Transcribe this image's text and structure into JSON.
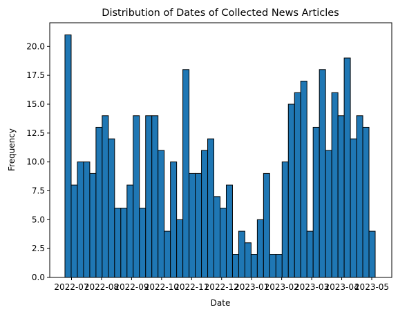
{
  "chart_data": {
    "type": "bar",
    "title": "Distribution of Dates of Collected News Articles",
    "xlabel": "Date",
    "ylabel": "Frequency",
    "ylim": [
      0,
      22.05
    ],
    "yticks": [
      0.0,
      2.5,
      5.0,
      7.5,
      10.0,
      12.5,
      15.0,
      17.5,
      20.0
    ],
    "ytick_labels": [
      "0.0",
      "2.5",
      "5.0",
      "7.5",
      "10.0",
      "12.5",
      "15.0",
      "17.5",
      "20.0"
    ],
    "xtick_labels": [
      "2022-07",
      "2022-08",
      "2022-09",
      "2022-10",
      "2022-11",
      "2022-12",
      "2023-01",
      "2023-02",
      "2023-03",
      "2023-04",
      "2023-05"
    ],
    "bins": 50,
    "bar_color": "#1f77b4",
    "edge_color": "#000000",
    "grid": false,
    "values": [
      21,
      8,
      10,
      10,
      9,
      13,
      14,
      12,
      6,
      6,
      8,
      14,
      6,
      14,
      14,
      11,
      4,
      10,
      5,
      18,
      9,
      9,
      11,
      12,
      7,
      6,
      8,
      2,
      4,
      3,
      2,
      5,
      9,
      2,
      2,
      10,
      15,
      16,
      17,
      4,
      13,
      18,
      11,
      16,
      14,
      19,
      12,
      14,
      13,
      4
    ]
  }
}
